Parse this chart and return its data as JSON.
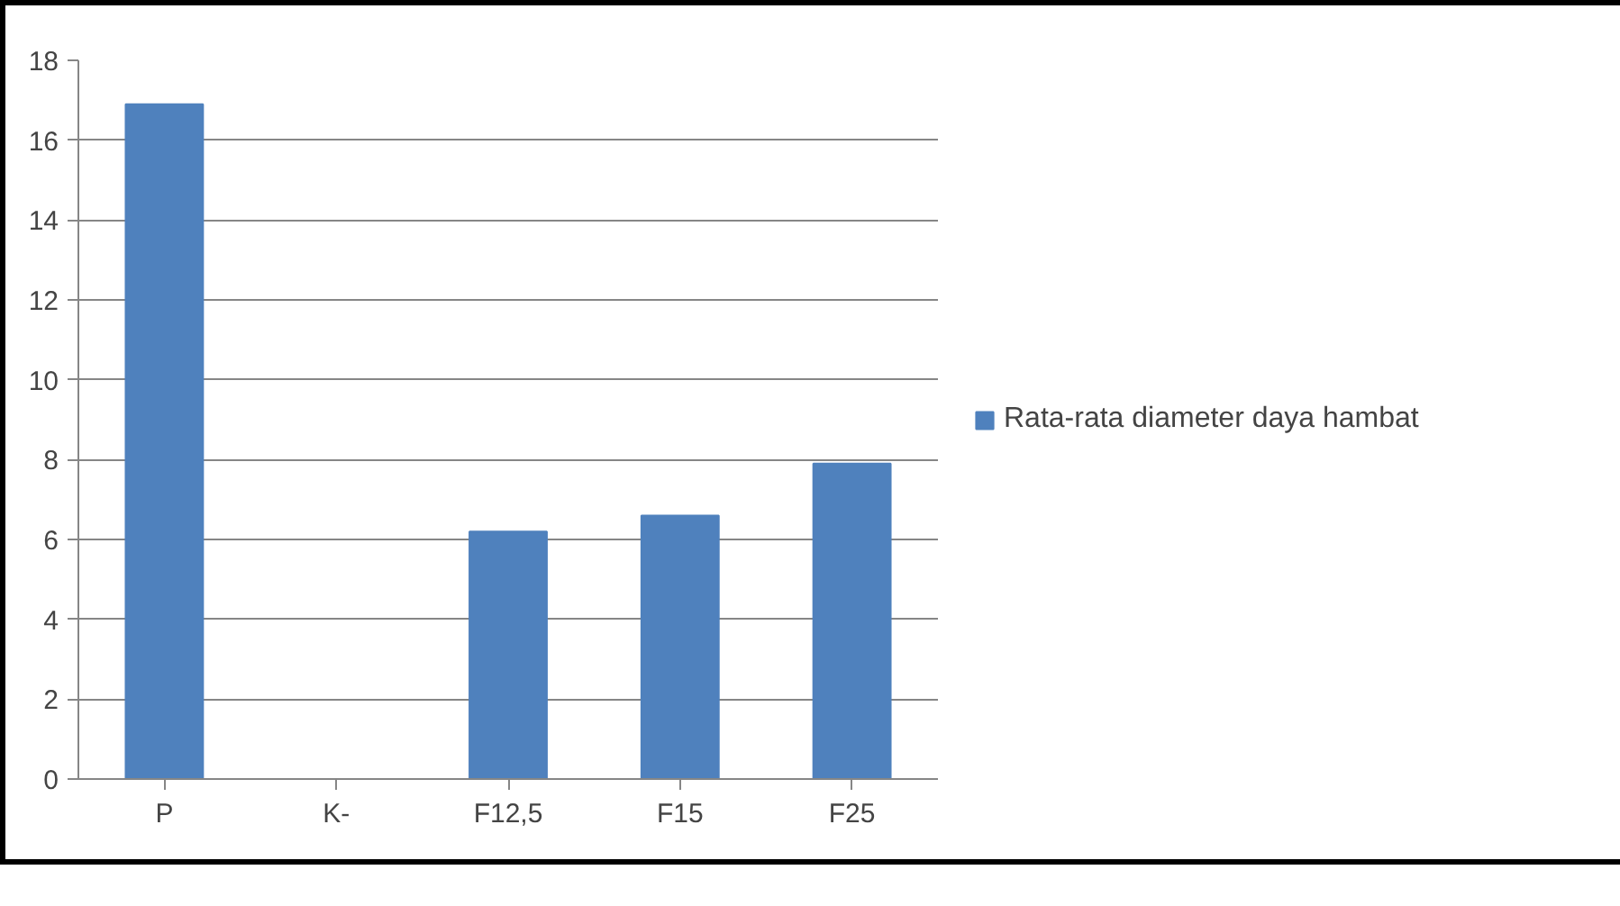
{
  "chart_data": {
    "type": "bar",
    "categories": [
      "P",
      "K-",
      "F12,5",
      "F15",
      "F25"
    ],
    "series": [
      {
        "name": "Rata-rata diameter daya hambat",
        "color": "#4f81bd",
        "values": [
          16.9,
          0,
          6.2,
          6.6,
          7.9
        ]
      }
    ],
    "ylim": [
      0,
      18
    ],
    "yticks": [
      0,
      2,
      4,
      6,
      8,
      10,
      12,
      14,
      16,
      18
    ],
    "grid": "y",
    "legend": "right"
  }
}
